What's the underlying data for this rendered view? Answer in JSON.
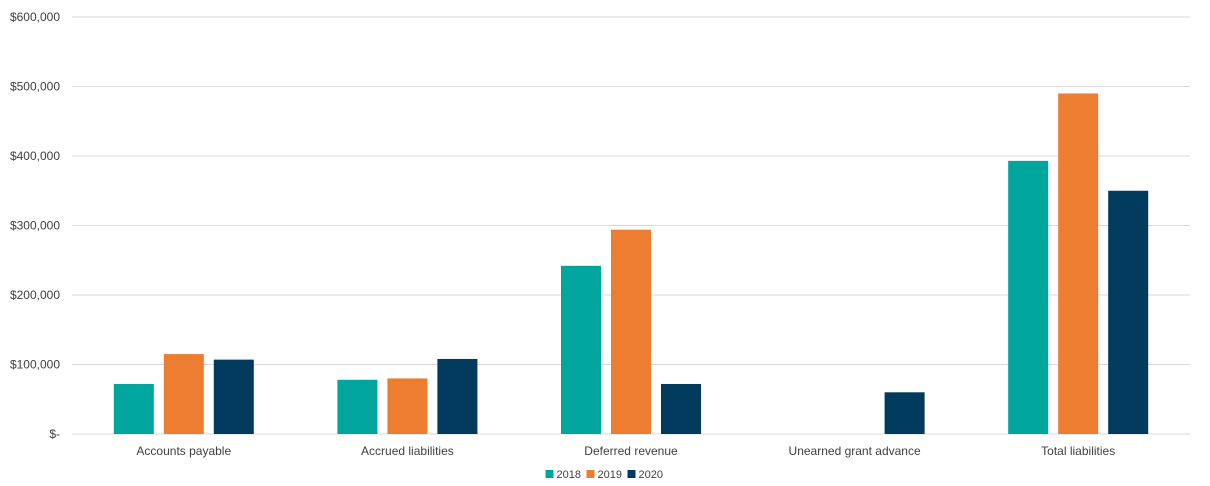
{
  "chart_data": {
    "type": "bar",
    "title": "",
    "xlabel": "",
    "ylabel": "",
    "categories": [
      "Accounts payable",
      "Accrued liabilities",
      "Deferred revenue",
      "Unearned grant advance",
      "Total liabilities"
    ],
    "series": [
      {
        "name": "2018",
        "color": "#00a59e",
        "values": [
          72000,
          78000,
          242000,
          0,
          393000
        ]
      },
      {
        "name": "2019",
        "color": "#ed7d31",
        "values": [
          115000,
          80000,
          294000,
          0,
          490000
        ]
      },
      {
        "name": "2020",
        "color": "#003a5d",
        "values": [
          107000,
          108000,
          72000,
          60000,
          350000
        ]
      }
    ],
    "ylim": [
      0,
      600000
    ],
    "yticks": [
      0,
      100000,
      200000,
      300000,
      400000,
      500000,
      600000
    ],
    "ytick_labels": [
      "$-",
      "$100,000",
      "$200,000",
      "$300,000",
      "$400,000",
      "$500,000",
      "$600,000"
    ],
    "grid": true,
    "legend_position": "bottom-center"
  }
}
